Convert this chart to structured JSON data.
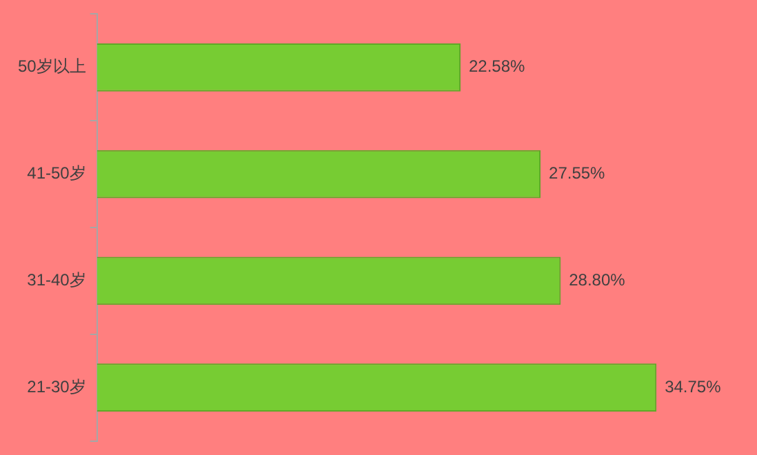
{
  "chart_data": {
    "type": "bar",
    "orientation": "horizontal",
    "categories": [
      "50岁以上",
      "41-50岁",
      "31-40岁",
      "21-30岁"
    ],
    "values": [
      22.58,
      27.55,
      28.8,
      34.75
    ],
    "value_labels": [
      "22.58%",
      "27.55%",
      "28.80%",
      "34.75%"
    ],
    "color": "#77cc33",
    "grid": false,
    "legend": false,
    "tick_labels": "y"
  }
}
